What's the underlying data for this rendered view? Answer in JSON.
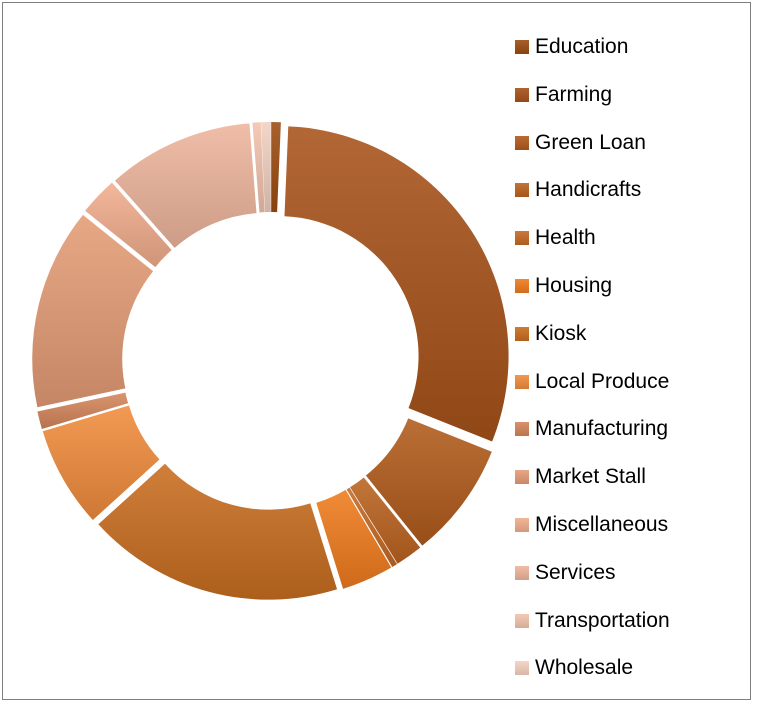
{
  "chart_data": {
    "type": "pie",
    "donut": true,
    "exploded": true,
    "title": "",
    "legend_position": "right",
    "categories": [
      "Education",
      "Farming",
      "Green Loan",
      "Handicrafts",
      "Health",
      "Housing",
      "Kiosk",
      "Local Produce",
      "Manufacturing",
      "Market Stall",
      "Miscellaneous",
      "Services",
      "Transportation",
      "Wholesale"
    ],
    "values": [
      0.7,
      31.6,
      8.5,
      2.0,
      0.4,
      3.8,
      18.8,
      7.4,
      1.3,
      14.7,
      2.8,
      10.7,
      0.6,
      0.7
    ],
    "colors": [
      "#9c4c12",
      "#a7521a",
      "#b15b1b",
      "#bb631f",
      "#c46a24",
      "#ef7b1d",
      "#c86d1f",
      "#f08c3c",
      "#d4865a",
      "#e49c76",
      "#f1ad8d",
      "#eeb59c",
      "#f2c3ad",
      "#f3d0c0"
    ]
  }
}
